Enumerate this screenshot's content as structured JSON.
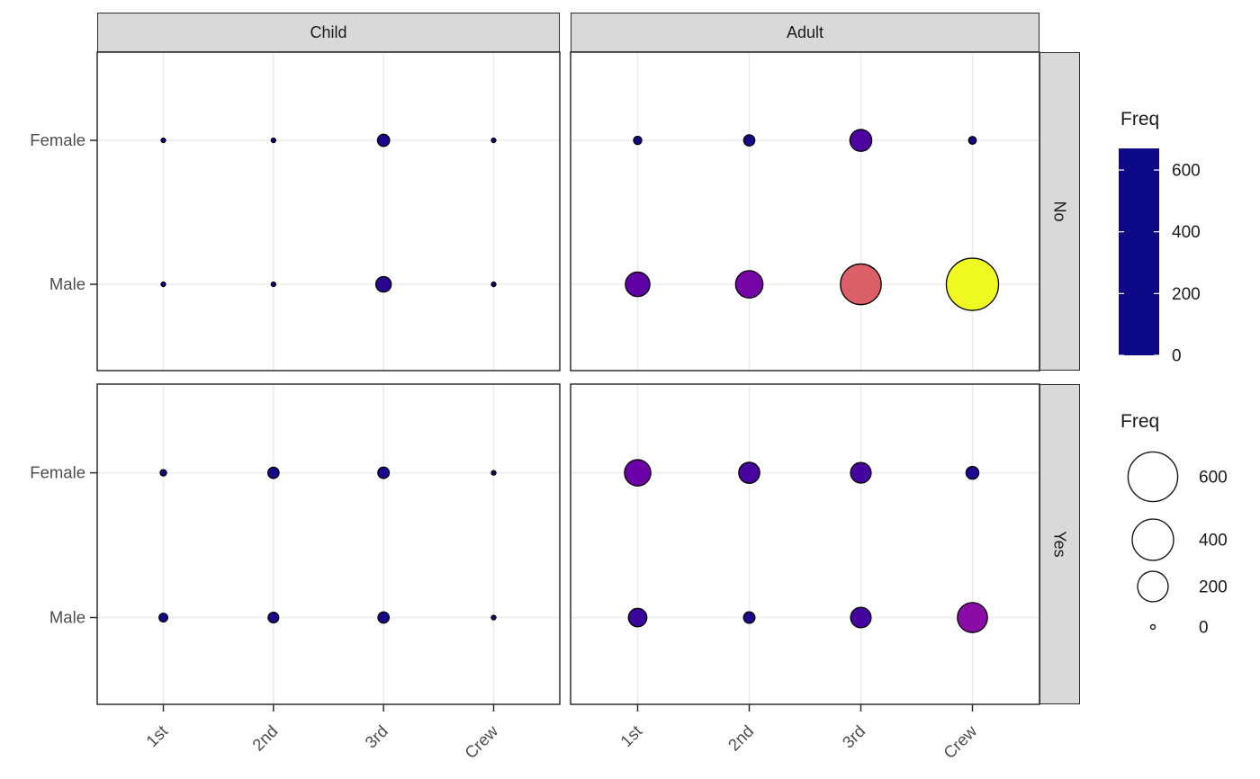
{
  "chart_data": {
    "type": "scatter",
    "subtype": "faceted-bubble-grid",
    "title": "",
    "xlabel": "",
    "ylabel": "",
    "x_categories": [
      "1st",
      "2nd",
      "3rd",
      "Crew"
    ],
    "y_categories_top_to_bottom": [
      "Female",
      "Male"
    ],
    "facet_columns": [
      "Child",
      "Adult"
    ],
    "facet_rows": [
      "No",
      "Yes"
    ],
    "grid": "major-only",
    "cells": [
      {
        "facet_col": "Child",
        "facet_row": "No",
        "series": [
          {
            "y": "Female",
            "values": [
              0,
              0,
              17,
              0
            ]
          },
          {
            "y": "Male",
            "values": [
              0,
              0,
              35,
              0
            ]
          }
        ]
      },
      {
        "facet_col": "Adult",
        "facet_row": "No",
        "series": [
          {
            "y": "Female",
            "values": [
              4,
              13,
              89,
              3
            ]
          },
          {
            "y": "Male",
            "values": [
              118,
              154,
              387,
              670
            ]
          }
        ]
      },
      {
        "facet_col": "Child",
        "facet_row": "Yes",
        "series": [
          {
            "y": "Female",
            "values": [
              1,
              13,
              14,
              0
            ]
          },
          {
            "y": "Male",
            "values": [
              5,
              11,
              13,
              0
            ]
          }
        ]
      },
      {
        "facet_col": "Adult",
        "facet_row": "Yes",
        "series": [
          {
            "y": "Female",
            "values": [
              140,
              80,
              76,
              20
            ]
          },
          {
            "y": "Male",
            "values": [
              57,
              14,
              75,
              192
            ]
          }
        ]
      }
    ],
    "legends": {
      "color": {
        "title": "Freq",
        "tick_labels": [
          "600",
          "400",
          "200",
          "0"
        ],
        "tick_values": [
          600,
          400,
          200,
          0
        ],
        "domain": [
          0,
          670
        ],
        "palette_name": "plasma",
        "palette_stops": [
          "#0d0887",
          "#41049d",
          "#6a00a8",
          "#8f0da4",
          "#b12a90",
          "#cc4778",
          "#e16462",
          "#f2844b",
          "#fca636",
          "#fcce25",
          "#f0f921"
        ]
      },
      "size": {
        "title": "Freq",
        "tick_labels": [
          "600",
          "400",
          "200",
          "0"
        ],
        "tick_values": [
          600,
          400,
          200,
          0
        ],
        "domain": [
          0,
          670
        ],
        "radius_range_px": [
          2.5,
          29
        ]
      }
    },
    "theme": {
      "background": "#ffffff",
      "panel_bg": "#ffffff",
      "grid_color": "#ebebeb",
      "border_color": "#2e2e2e",
      "strip_bg": "#d9d9d9",
      "strip_text_color": "#1a1a1a",
      "axis_text_color": "#4d4d4d",
      "legend_text_color": "#1a1a1a",
      "point_stroke": "#000000",
      "tick_color": "#2e2e2e"
    }
  }
}
